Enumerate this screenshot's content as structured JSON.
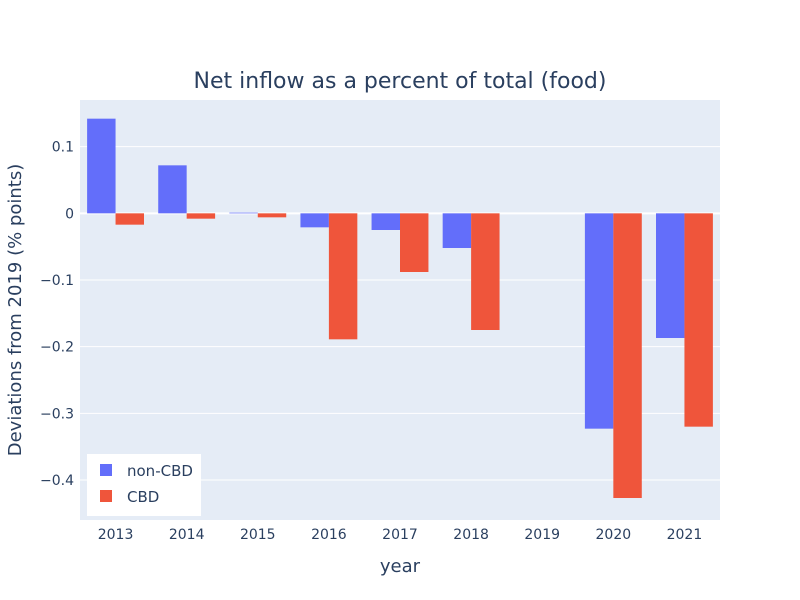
{
  "chart_data": {
    "type": "bar",
    "title": "Net inflow as a percent of total (food)",
    "xlabel": "year",
    "ylabel": "Deviations from 2019 (% points)",
    "categories": [
      "2013",
      "2014",
      "2015",
      "2016",
      "2017",
      "2018",
      "2019",
      "2020",
      "2021"
    ],
    "series": [
      {
        "name": "non-CBD",
        "color": "#636efa",
        "values": [
          0.142,
          0.072,
          0.001,
          -0.021,
          -0.025,
          -0.052,
          0,
          -0.323,
          -0.187
        ]
      },
      {
        "name": "CBD",
        "color": "#ef553b",
        "values": [
          -0.017,
          -0.008,
          -0.006,
          -0.189,
          -0.088,
          -0.175,
          0,
          -0.427,
          -0.32
        ]
      }
    ],
    "ylim": [
      -0.46,
      0.17
    ],
    "yticks": [
      0.1,
      0,
      -0.1,
      -0.2,
      -0.3,
      -0.4
    ],
    "ytick_labels": [
      "0.1",
      "0",
      "−0.1",
      "−0.2",
      "−0.3",
      "−0.4"
    ],
    "grid": true,
    "legend_position": "bottom-left",
    "plot_background": "#e5ecf6"
  }
}
